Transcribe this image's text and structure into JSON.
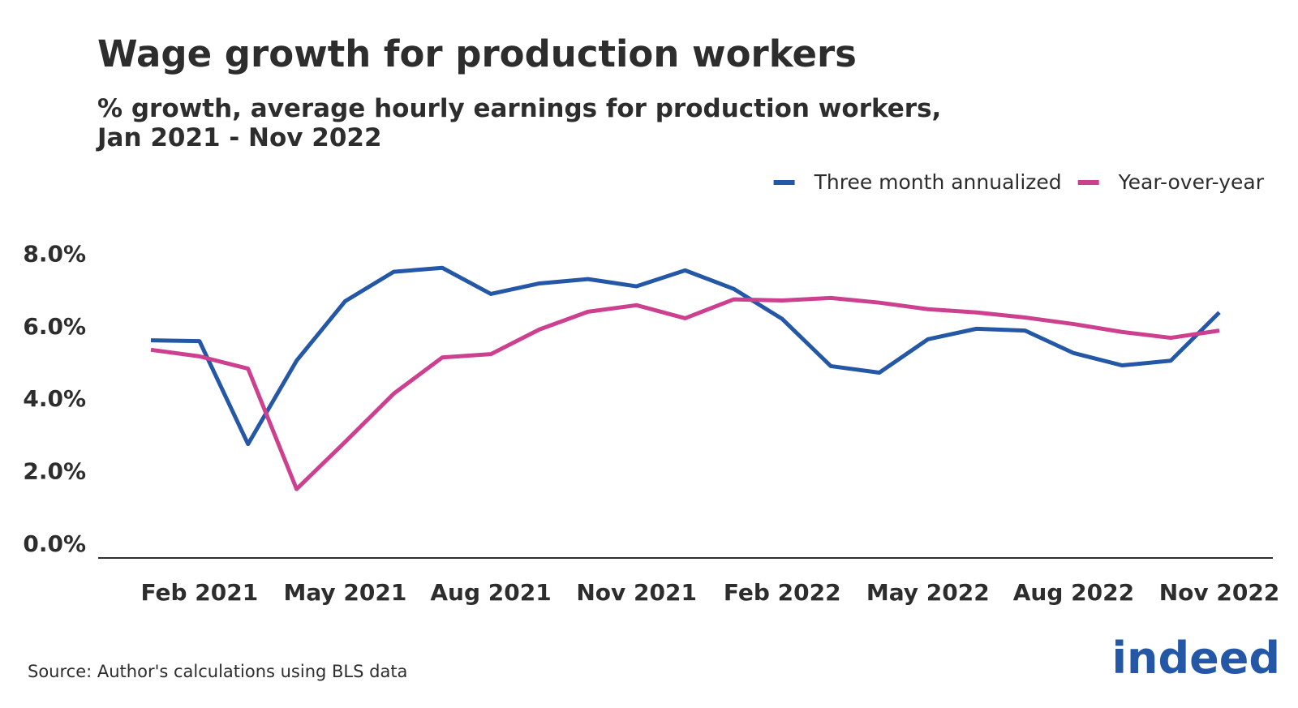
{
  "chart_data": {
    "type": "line",
    "title": "Wage growth for production workers",
    "subtitle": [
      "% growth, average hourly earnings for production workers,",
      "Jan 2021 - Nov 2022"
    ],
    "categories": [
      null,
      "Feb 2021",
      null,
      null,
      "May 2021",
      null,
      null,
      "Aug 2021",
      null,
      null,
      "Nov 2021",
      null,
      null,
      "Feb 2022",
      null,
      null,
      "May 2022",
      null,
      null,
      "Aug 2022",
      null,
      null,
      "Nov 2022"
    ],
    "series": [
      {
        "name": "Three month annualized",
        "color": "#2557a7",
        "values": [
          5.6,
          5.58,
          2.74,
          5.04,
          6.68,
          7.49,
          7.6,
          6.88,
          7.17,
          7.29,
          7.09,
          7.53,
          7.02,
          6.19,
          4.89,
          4.71,
          5.63,
          5.92,
          5.87,
          5.25,
          4.91,
          5.04,
          6.37
        ]
      },
      {
        "name": "Year-over-year",
        "color": "#cd3f8f",
        "values": [
          5.34,
          5.16,
          4.82,
          1.5,
          2.8,
          4.13,
          5.13,
          5.22,
          5.9,
          6.39,
          6.57,
          6.21,
          6.73,
          6.7,
          6.77,
          6.64,
          6.46,
          6.37,
          6.23,
          6.05,
          5.83,
          5.67,
          5.87
        ]
      }
    ],
    "ylim": [
      -0.4,
      8.5
    ],
    "yticks": [
      {
        "value": 0,
        "label": "0.0%"
      },
      {
        "value": 2,
        "label": "2.0%"
      },
      {
        "value": 4,
        "label": "4.0%"
      },
      {
        "value": 6,
        "label": "6.0%"
      },
      {
        "value": 8,
        "label": "8.0%"
      }
    ],
    "grid": false,
    "legend": "top-right",
    "source": "Source: Author's calculations using BLS data",
    "logo": "indeed"
  }
}
